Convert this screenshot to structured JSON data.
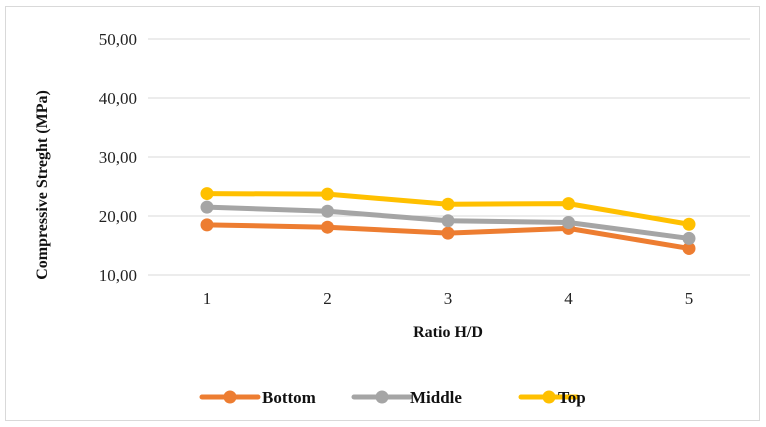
{
  "chart_data": {
    "type": "line",
    "title": "",
    "xlabel": "Ratio H/D",
    "ylabel": "Compressive Streght (MPa)",
    "categories": [
      "1",
      "2",
      "3",
      "4",
      "5"
    ],
    "ylim": [
      10,
      50
    ],
    "yticks": [
      "10,00",
      "20,00",
      "30,00",
      "40,00",
      "50,00"
    ],
    "grid": true,
    "legend_position": "bottom",
    "series": [
      {
        "name": "Bottom",
        "color": "#ED7D31",
        "values": [
          18.5,
          18.1,
          17.1,
          17.9,
          14.5
        ]
      },
      {
        "name": "Middle",
        "color": "#A5A5A5",
        "values": [
          21.5,
          20.8,
          19.2,
          18.9,
          16.2
        ]
      },
      {
        "name": "Top",
        "color": "#FFC000",
        "values": [
          23.8,
          23.7,
          22.0,
          22.1,
          18.6
        ]
      }
    ]
  }
}
